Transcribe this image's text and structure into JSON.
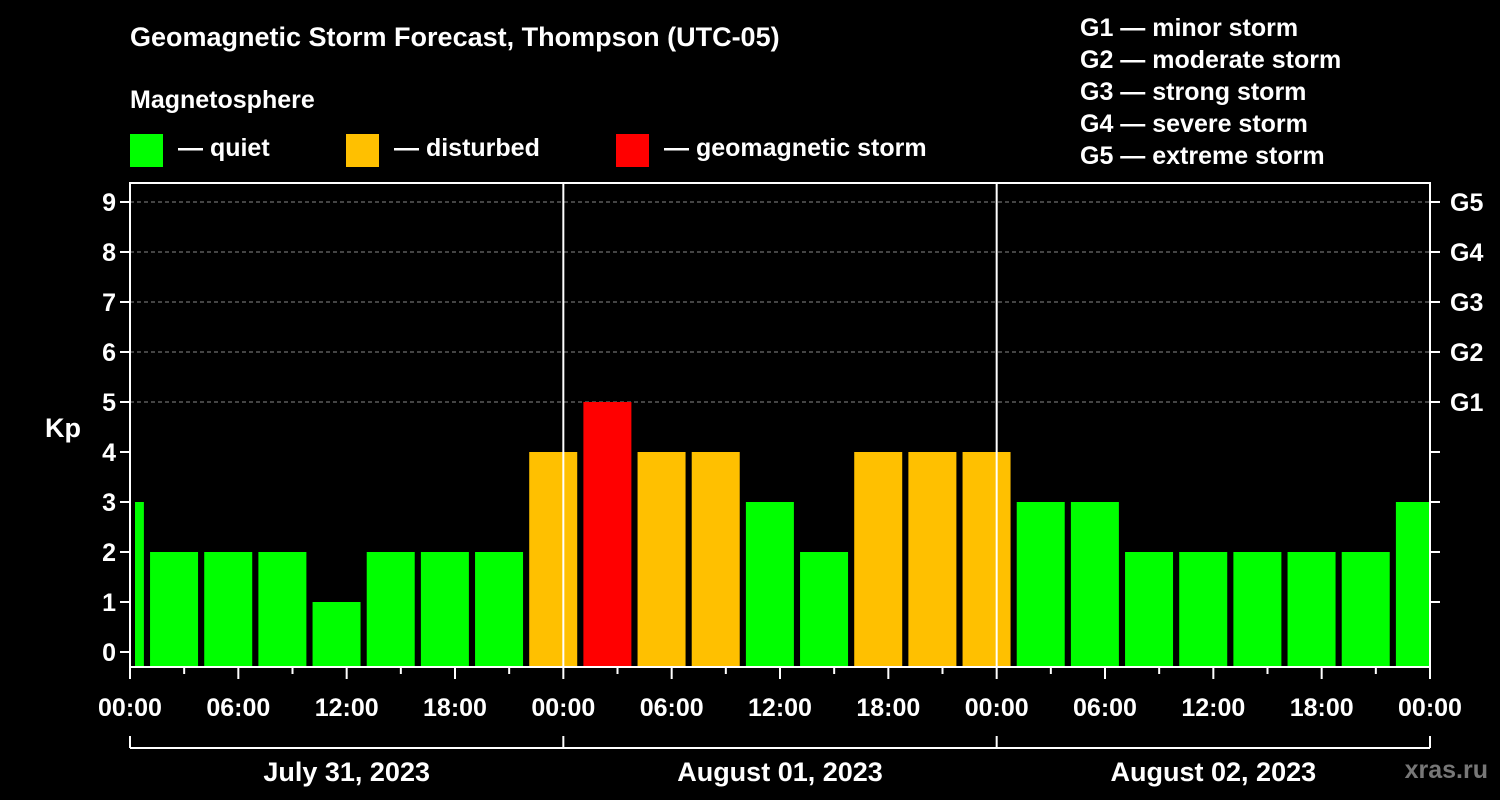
{
  "title": "Geomagnetic Storm Forecast, Thompson (UTC-05)",
  "magnetosphere_label": "Magnetosphere",
  "legend": [
    {
      "label": "— quiet",
      "color": "#00ff00"
    },
    {
      "label": "— disturbed",
      "color": "#ffc000"
    },
    {
      "label": "— geomagnetic storm",
      "color": "#ff0000"
    }
  ],
  "g_scale": [
    "G1 — minor storm",
    "G2 — moderate storm",
    "G3 — strong storm",
    "G4 — severe storm",
    "G5 — extreme storm"
  ],
  "watermark": "xras.ru",
  "chart_data": {
    "type": "bar",
    "ylabel": "Kp",
    "ylim": [
      0,
      9
    ],
    "yticks": [
      "0",
      "1",
      "2",
      "3",
      "4",
      "5",
      "6",
      "7",
      "8",
      "9"
    ],
    "right_ticks": [
      {
        "kp": 5,
        "label": "G1"
      },
      {
        "kp": 6,
        "label": "G2"
      },
      {
        "kp": 7,
        "label": "G3"
      },
      {
        "kp": 8,
        "label": "G4"
      },
      {
        "kp": 9,
        "label": "G5"
      }
    ],
    "grid": "horizontal dashed at Kp 5-9",
    "xlim_hours": [
      0,
      72
    ],
    "xticks": [
      "00:00",
      "06:00",
      "12:00",
      "18:00",
      "00:00",
      "06:00",
      "12:00",
      "18:00",
      "00:00",
      "06:00",
      "12:00",
      "18:00",
      "00:00"
    ],
    "days": [
      "July 31, 2023",
      "August 01, 2023",
      "August 02, 2023"
    ],
    "bin_start_hours": [
      -2,
      1,
      4,
      7,
      10,
      13,
      16,
      19,
      22,
      25,
      28,
      31,
      34,
      37,
      40,
      43,
      46,
      49,
      52,
      55,
      58,
      61,
      64,
      67,
      70
    ],
    "values": [
      3,
      2,
      2,
      2,
      1,
      2,
      2,
      2,
      4,
      5,
      4,
      4,
      3,
      2,
      4,
      4,
      4,
      3,
      3,
      2,
      2,
      2,
      2,
      2,
      3
    ],
    "colors": {
      "quiet": "#00ff00",
      "disturbed": "#ffc000",
      "storm": "#ff0000"
    }
  }
}
